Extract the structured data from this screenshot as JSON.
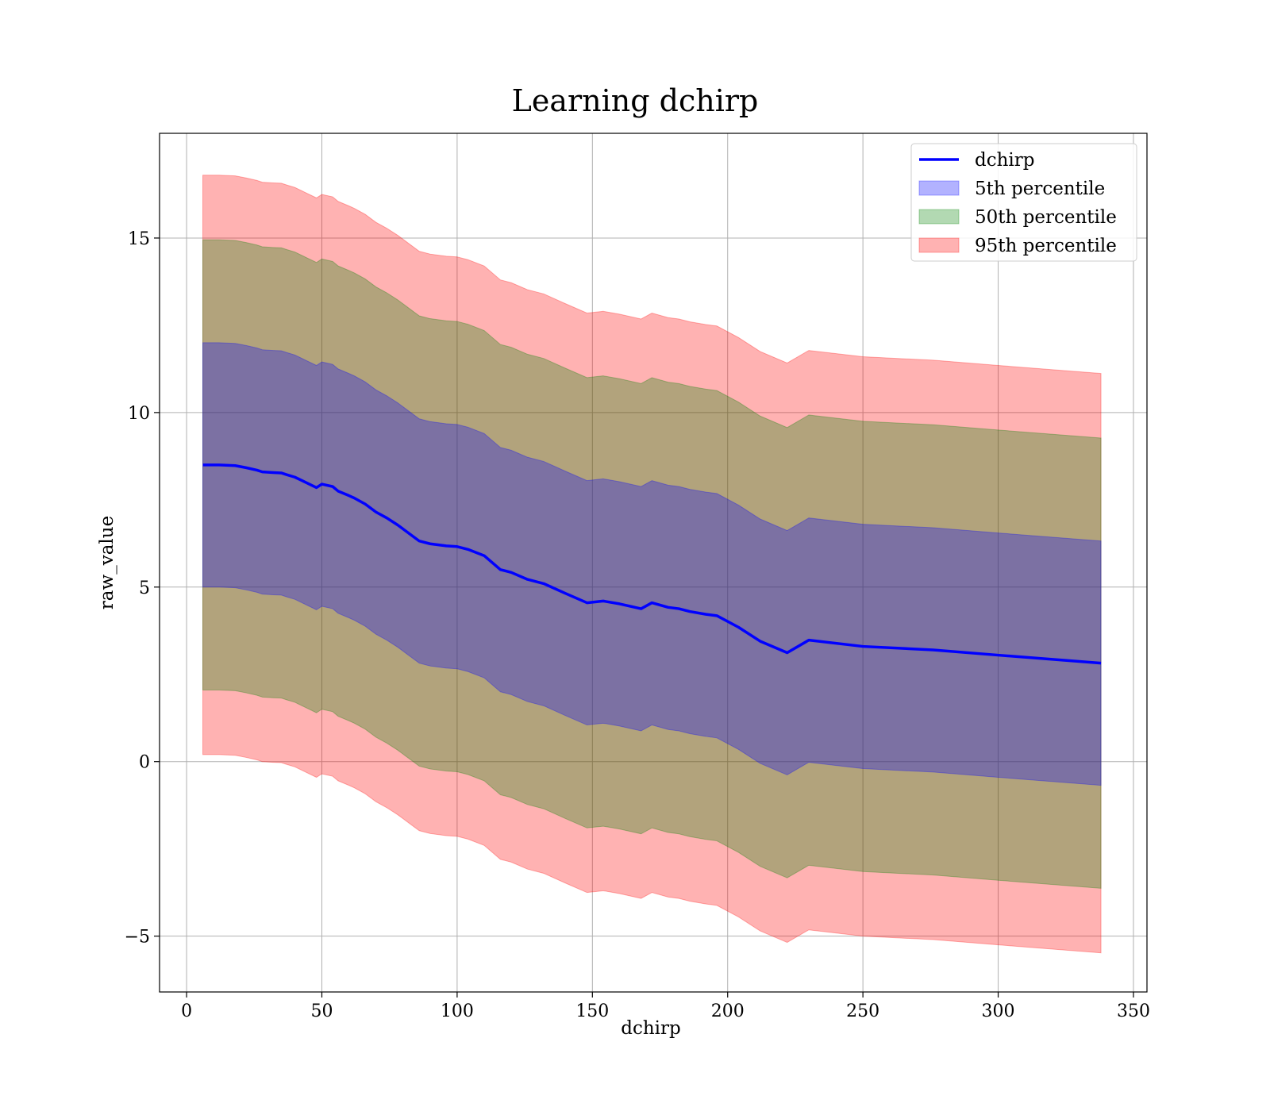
{
  "chart_data": {
    "type": "area",
    "title": "Learning dchirp",
    "xlabel": "dchirp",
    "ylabel": "raw_value",
    "xlim": [
      -10,
      355
    ],
    "ylim": [
      -6.6,
      18
    ],
    "xticks": [
      0,
      50,
      100,
      150,
      200,
      250,
      300,
      350
    ],
    "yticks": [
      -5,
      0,
      5,
      10,
      15
    ],
    "xtick_labels": [
      "0",
      "50",
      "100",
      "150",
      "200",
      "250",
      "300",
      "350"
    ],
    "ytick_labels": [
      "−5",
      "0",
      "5",
      "10",
      "15"
    ],
    "grid": true,
    "legend_position": "top-right",
    "x": [
      6,
      12,
      18,
      22,
      26,
      28,
      32,
      35,
      37,
      40,
      44,
      48,
      50,
      54,
      56,
      60,
      62,
      66,
      70,
      74,
      78,
      82,
      86,
      90,
      96,
      100,
      104,
      110,
      116,
      120,
      126,
      132,
      140,
      148,
      154,
      160,
      168,
      172,
      178,
      182,
      186,
      192,
      196,
      204,
      212,
      222,
      230,
      250,
      276,
      300,
      338
    ],
    "mean": [
      8.5,
      8.5,
      8.48,
      8.42,
      8.35,
      8.3,
      8.28,
      8.27,
      8.22,
      8.15,
      8.0,
      7.85,
      7.95,
      7.88,
      7.75,
      7.62,
      7.55,
      7.38,
      7.15,
      6.98,
      6.78,
      6.55,
      6.32,
      6.24,
      6.18,
      6.16,
      6.08,
      5.9,
      5.5,
      5.42,
      5.22,
      5.1,
      4.82,
      4.55,
      4.6,
      4.52,
      4.38,
      4.55,
      4.42,
      4.38,
      4.3,
      4.22,
      4.18,
      3.85,
      3.45,
      3.12,
      3.48,
      3.3,
      3.2,
      3.05,
      2.82
    ],
    "series": [
      {
        "name": "dchirp",
        "kind": "line",
        "color": "#0000ff"
      },
      {
        "name": "5th percentile",
        "kind": "band",
        "halfwidth": 3.5,
        "color": "#0000ff",
        "opacity": 0.3
      },
      {
        "name": "50th percentile",
        "kind": "band",
        "halfwidth": 6.45,
        "color": "#008000",
        "opacity": 0.3
      },
      {
        "name": "95th percentile",
        "kind": "band",
        "halfwidth": 8.3,
        "color": "#ff0000",
        "opacity": 0.3
      }
    ]
  }
}
